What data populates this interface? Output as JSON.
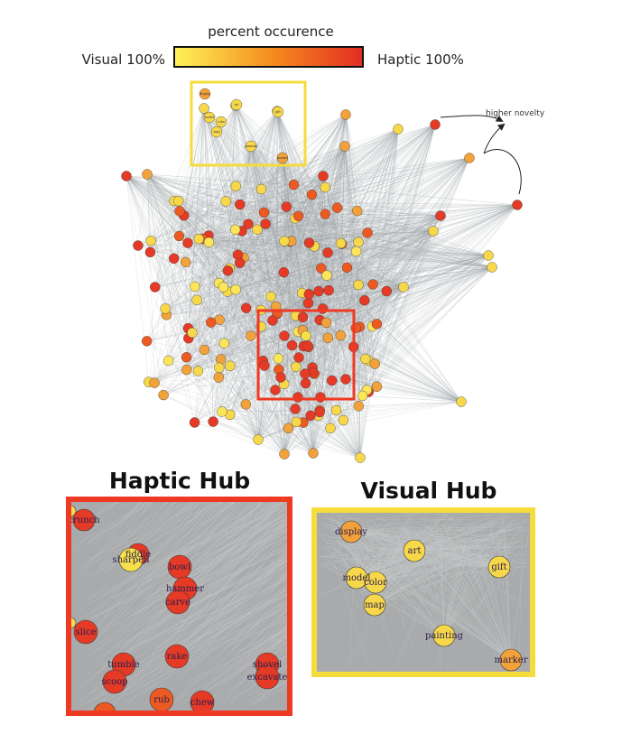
{
  "legend": {
    "title": "percent occurence",
    "left_label": "Visual 100%",
    "right_label": "Haptic 100%",
    "gradient": [
      "#ffeb3b",
      "#fb8c00",
      "#e53935"
    ]
  },
  "annotation": "higher novelty",
  "haptic_hub": {
    "title": "Haptic Hub",
    "frame_color": "#ee3a23",
    "nodes": [
      {
        "label": "crunch",
        "color": "#e53a25"
      },
      {
        "label": "fiddle",
        "color": "#e53a25"
      },
      {
        "label": "sharpen",
        "color": "#f7e04a"
      },
      {
        "label": "bowl",
        "color": "#e53a25"
      },
      {
        "label": "hammer",
        "color": "#e53a25"
      },
      {
        "label": "carve",
        "color": "#e53a25"
      },
      {
        "label": "slice",
        "color": "#e53a25"
      },
      {
        "label": "tumble",
        "color": "#e53a25"
      },
      {
        "label": "scoop",
        "color": "#e53a25"
      },
      {
        "label": "rake",
        "color": "#e53a25"
      },
      {
        "label": "shovel",
        "color": "#e53a25"
      },
      {
        "label": "excavate",
        "color": "#e53a25"
      },
      {
        "label": "rub",
        "color": "#ec5a22"
      },
      {
        "label": "chew",
        "color": "#e53a25"
      }
    ]
  },
  "visual_hub": {
    "title": "Visual Hub",
    "frame_color": "#f5dc3c",
    "nodes": [
      {
        "label": "display",
        "color": "#f2a23a"
      },
      {
        "label": "art",
        "color": "#f7d84a"
      },
      {
        "label": "gift",
        "color": "#f7d84a"
      },
      {
        "label": "model",
        "color": "#f7d84a"
      },
      {
        "label": "color",
        "color": "#f7d84a"
      },
      {
        "label": "map",
        "color": "#f7d84a"
      },
      {
        "label": "painting",
        "color": "#f7d84a"
      },
      {
        "label": "marker",
        "color": "#f2a23a"
      }
    ]
  },
  "network_node_labels": [
    "display",
    "art",
    "model",
    "color",
    "gift",
    "map",
    "painting",
    "marker"
  ]
}
